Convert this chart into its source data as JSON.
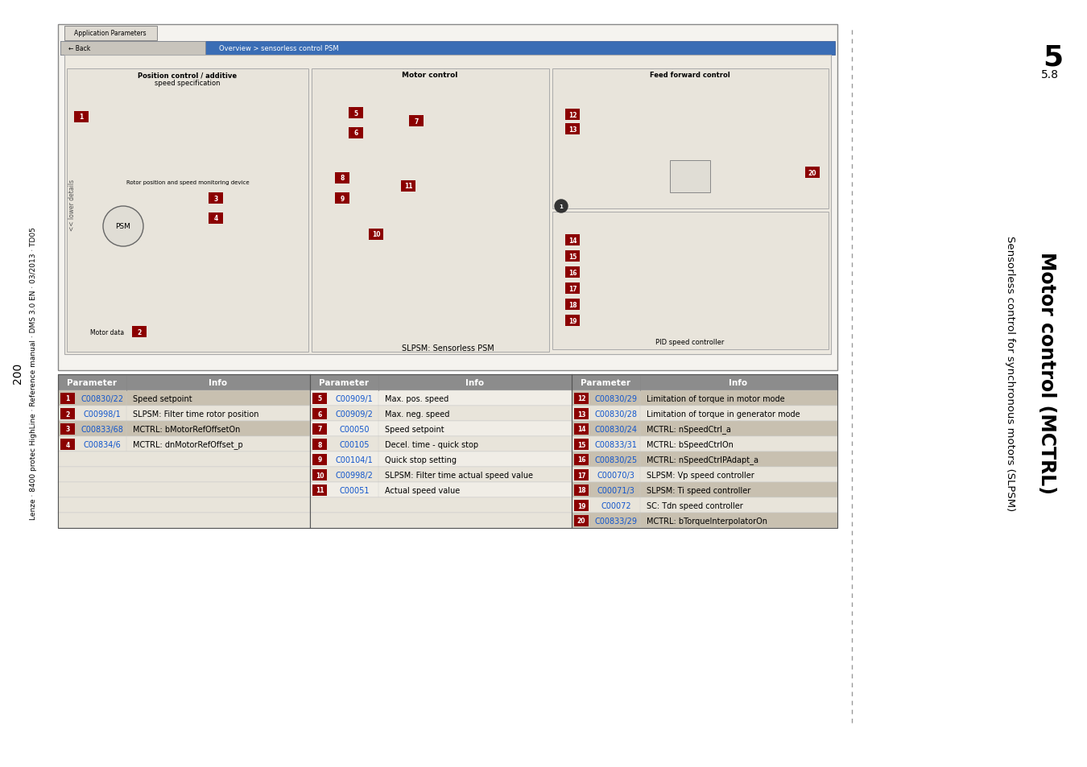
{
  "page_number": "200",
  "chapter_number": "5",
  "section_number": "5.8",
  "title_main": "Motor control (MCTRL)",
  "title_sub": "Sensorless control for synchronous motors (SLPSM)",
  "footer_text": "Lenze · 8400 protec HighLine · Reference manual · DMS 3.0 EN · 03/2013 · TD05",
  "bg_color": "#ffffff",
  "table_header_bg": "#8c8c8c",
  "table_row_odd_bg": "#f0ede6",
  "table_row_even_bg": "#e8e4da",
  "table_row_highlight_bg": "#c8c0b0",
  "number_box_color": "#8b0000",
  "link_color": "#1155cc",
  "dashed_line_color": "#888888",
  "col1_params": [
    {
      "num": "1",
      "param": "C00830/22",
      "info": "Speed setpoint"
    },
    {
      "num": "2",
      "param": "C00998/1",
      "info": "SLPSM: Filter time rotor position"
    },
    {
      "num": "3",
      "param": "C00833/68",
      "info": "MCTRL: bMotorRefOffsetOn"
    },
    {
      "num": "4",
      "param": "C00834/6",
      "info": "MCTRL: dnMotorRefOffset_p"
    }
  ],
  "col2_params": [
    {
      "num": "5",
      "param": "C00909/1",
      "info": "Max. pos. speed"
    },
    {
      "num": "6",
      "param": "C00909/2",
      "info": "Max. neg. speed"
    },
    {
      "num": "7",
      "param": "C00050",
      "info": "Speed setpoint"
    },
    {
      "num": "8",
      "param": "C00105",
      "info": "Decel. time - quick stop"
    },
    {
      "num": "9",
      "param": "C00104/1",
      "info": "Quick stop setting"
    },
    {
      "num": "10",
      "param": "C00998/2",
      "info": "SLPSM: Filter time actual speed value"
    },
    {
      "num": "11",
      "param": "C00051",
      "info": "Actual speed value"
    }
  ],
  "col3_params": [
    {
      "num": "12",
      "param": "C00830/29",
      "info": "Limitation of torque in motor mode"
    },
    {
      "num": "13",
      "param": "C00830/28",
      "info": "Limitation of torque in generator mode"
    },
    {
      "num": "14",
      "param": "C00830/24",
      "info": "MCTRL: nSpeedCtrl_a"
    },
    {
      "num": "15",
      "param": "C00833/31",
      "info": "MCTRL: bSpeedCtrlOn"
    },
    {
      "num": "16",
      "param": "C00830/25",
      "info": "MCTRL: nSpeedCtrlPAdapt_a"
    },
    {
      "num": "17",
      "param": "C00070/3",
      "info": "SLPSM: Vp speed controller"
    },
    {
      "num": "18",
      "param": "C00071/3",
      "info": "SLPSM: Ti speed controller"
    },
    {
      "num": "19",
      "param": "C00072",
      "info": "SC: Tdn speed controller"
    },
    {
      "num": "20",
      "param": "C00833/29",
      "info": "MCTRL: bTorqueInterpolatorOn"
    }
  ]
}
